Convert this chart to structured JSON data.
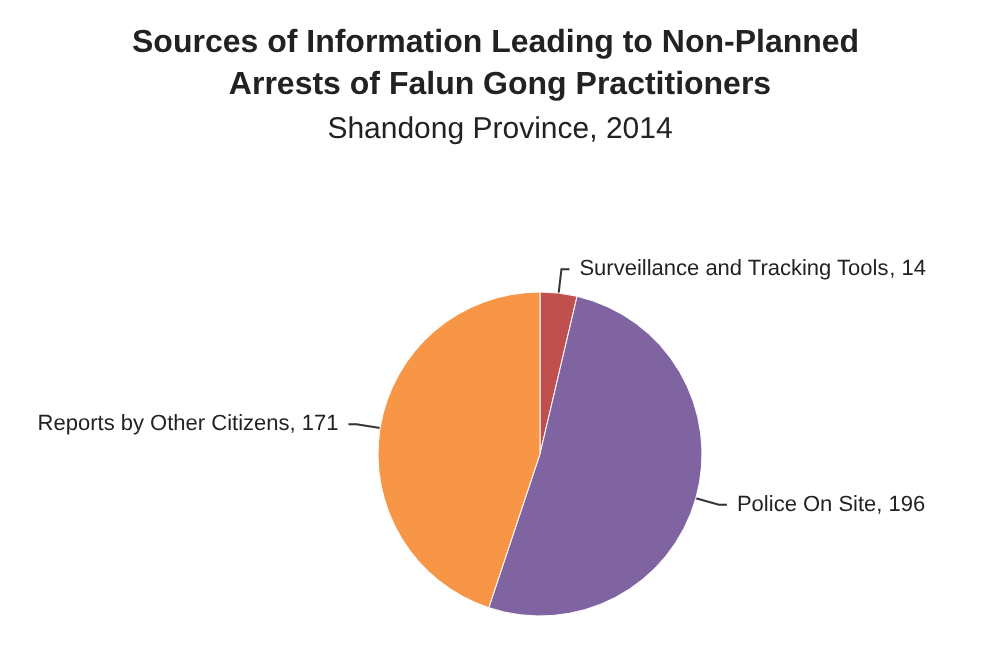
{
  "chart_data": {
    "type": "pie",
    "title": "Sources of Information Leading to Non-Planned Arrests of Falun Gong Practitioners",
    "subtitle": "Shandong Province, 2014",
    "categories": [
      "Surveillance and Tracking Tools",
      "Police On Site",
      "Reports by Other Citizens"
    ],
    "values": [
      14,
      196,
      171
    ],
    "colors": [
      "#c0504d",
      "#8064a2",
      "#f79646"
    ],
    "value_labels": [
      ", 14",
      ", 196",
      ", 171"
    ],
    "legend": false
  }
}
